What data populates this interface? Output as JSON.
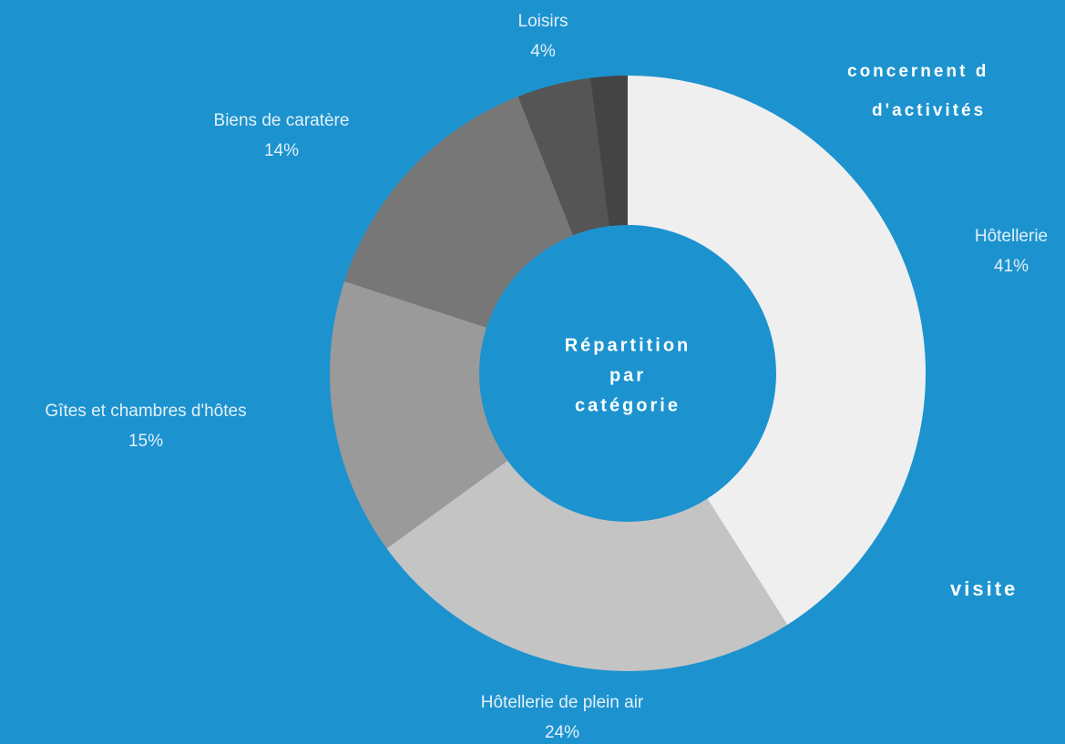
{
  "chart_data": {
    "type": "pie",
    "center_label": [
      "Répartition",
      "par",
      "catégorie"
    ],
    "categories": [
      "Hôtellerie",
      "Hôtellerie de plein air",
      "Gîtes et chambres d'hôtes",
      "Biens de caratère",
      "Loisirs",
      null
    ],
    "values": [
      41,
      24,
      15,
      14,
      4,
      2
    ],
    "value_labels": [
      "41%",
      "24%",
      "15%",
      "14%",
      "4%",
      null
    ],
    "colors": [
      "#efefef",
      "#c4c4c4",
      "#9a9a9a",
      "#777777",
      "#555555",
      "#444444"
    ],
    "annotations": [
      "concernent d",
      "d'activités",
      "visite"
    ]
  }
}
